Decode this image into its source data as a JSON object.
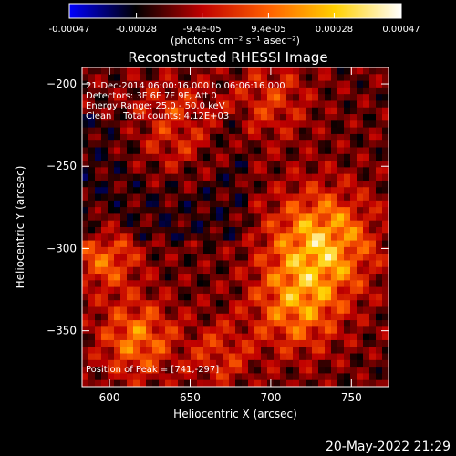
{
  "colorbar": {
    "ticks": [
      "-0.00047",
      "-0.00028",
      "-9.4e-05",
      "9.4e-05",
      "0.00028",
      "0.00047"
    ],
    "tick_values": [
      -0.00047,
      -0.00028,
      -9.4e-05,
      9.4e-05,
      0.00028,
      0.00047
    ],
    "range": [
      -0.00047,
      0.00047
    ],
    "units": "(photons cm⁻² s⁻¹ asec⁻²)",
    "stops": [
      "#0000ff",
      "#000000",
      "#c00000",
      "#ff6000",
      "#ffd000",
      "#ffffff"
    ]
  },
  "chart_data": {
    "type": "heatmap",
    "title": "Reconstructed RHESSI Image",
    "xlabel": "Heliocentric X (arcsec)",
    "ylabel": "Heliocentric Y (arcsec)",
    "xlim": [
      583,
      773
    ],
    "ylim": [
      -384,
      -190
    ],
    "xticks": [
      600,
      650,
      700,
      750
    ],
    "yticks": [
      -200,
      -250,
      -300,
      -350
    ],
    "xtick_labels": [
      "600",
      "650",
      "700",
      "750"
    ],
    "ytick_labels": [
      "−200",
      "−250",
      "−300",
      "−350"
    ],
    "annotations": [
      "21-Dec-2014 06:00:16.000 to 06:06:16.000",
      "Detectors: 3F 6F 7F 9F, Att 0",
      "Energy Range: 25.0 - 50.0 keV",
      "Clean    Total counts: 4.12E+03"
    ],
    "peak_label": "Position of Peak = [741,-297]",
    "peak": [
      741,
      -297
    ]
  },
  "footer": {
    "timestamp": "20-May-2022 21:29"
  }
}
